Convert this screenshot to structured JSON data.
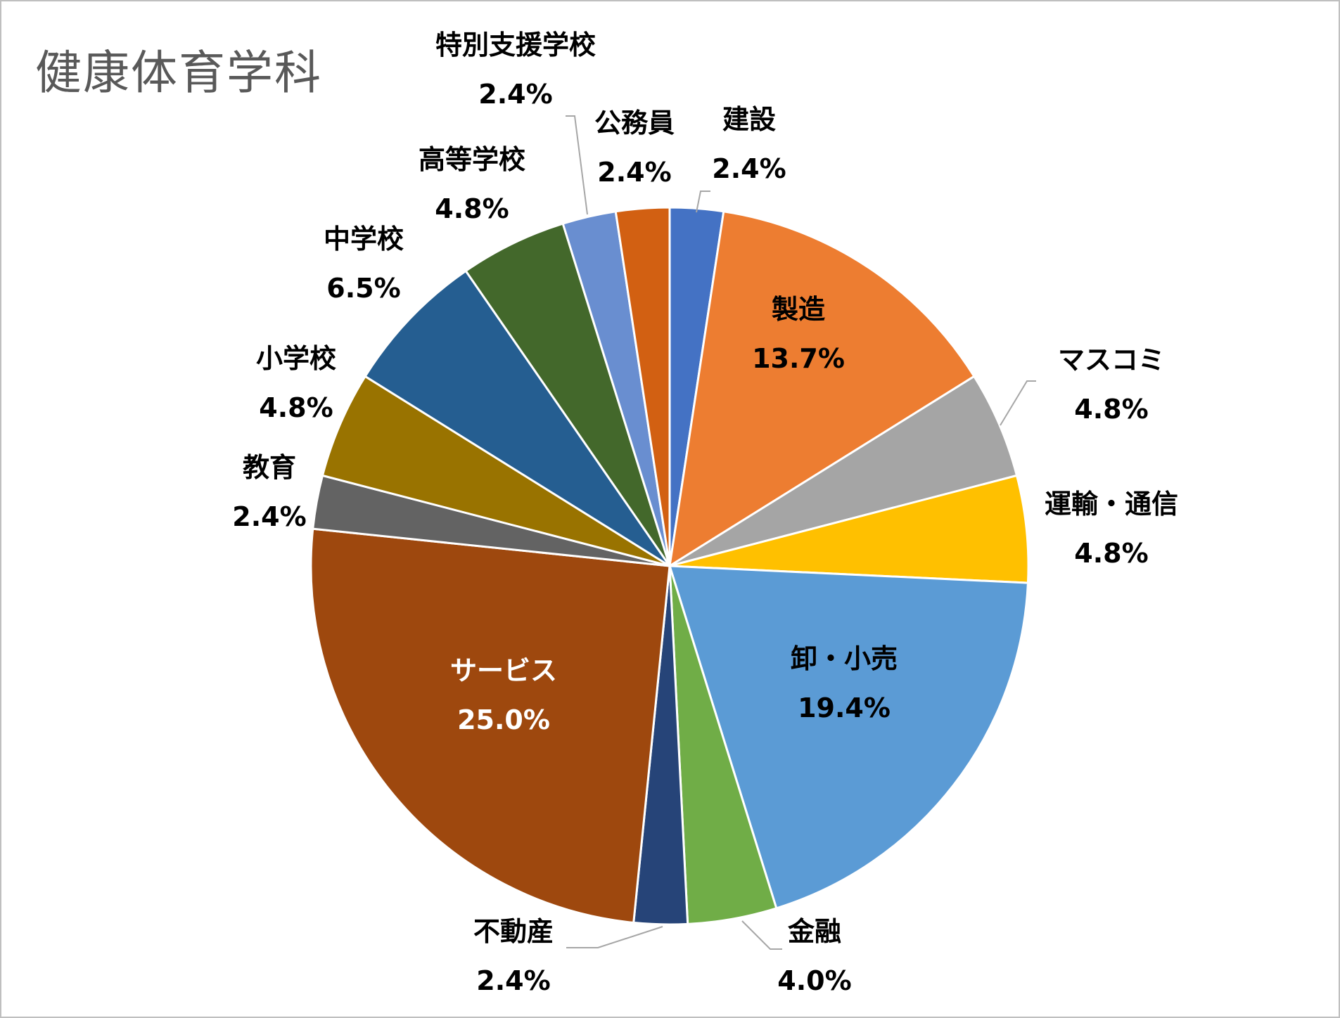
{
  "chart_data": {
    "type": "pie",
    "title": "健康体育学科",
    "start_angle_deg": 0,
    "direction": "clockwise",
    "slices": [
      {
        "label": "建設",
        "value": 2.4,
        "value_label": "2.4%",
        "color": "#4472C4"
      },
      {
        "label": "製造",
        "value": 13.7,
        "value_label": "13.7%",
        "color": "#ED7D31"
      },
      {
        "label": "マスコミ",
        "value": 4.8,
        "value_label": "4.8%",
        "color": "#A5A5A5"
      },
      {
        "label": "運輸・通信",
        "value": 4.8,
        "value_label": "4.8%",
        "color": "#FFC000"
      },
      {
        "label": "卸・小売",
        "value": 19.4,
        "value_label": "19.4%",
        "color": "#5B9BD5"
      },
      {
        "label": "金融",
        "value": 4.0,
        "value_label": "4.0%",
        "color": "#70AD47"
      },
      {
        "label": "不動産",
        "value": 2.4,
        "value_label": "2.4%",
        "color": "#264478"
      },
      {
        "label": "サービス",
        "value": 25.0,
        "value_label": "25.0%",
        "color": "#9E480E"
      },
      {
        "label": "教育",
        "value": 2.4,
        "value_label": "2.4%",
        "color": "#636363"
      },
      {
        "label": "小学校",
        "value": 4.8,
        "value_label": "4.8%",
        "color": "#997300"
      },
      {
        "label": "中学校",
        "value": 6.5,
        "value_label": "6.5%",
        "color": "#255E91"
      },
      {
        "label": "高等学校",
        "value": 4.8,
        "value_label": "4.8%",
        "color": "#43682B"
      },
      {
        "label": "特別支援学校",
        "value": 2.4,
        "value_label": "2.4%",
        "color": "#698ED0"
      },
      {
        "label": "公務員",
        "value": 2.4,
        "value_label": "2.4%",
        "color": "#D26012"
      }
    ]
  }
}
